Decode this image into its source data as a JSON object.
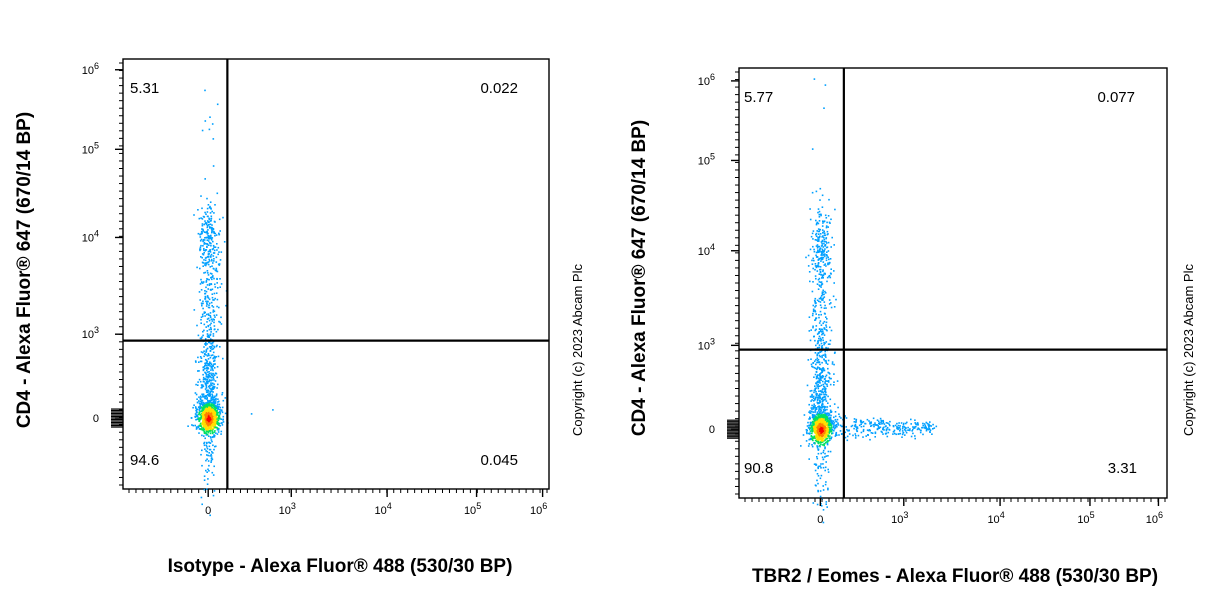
{
  "chart_data": [
    {
      "type": "scatter",
      "subtype": "flow-cytometry-density-dot-plot",
      "xlabel": "Isotype - Alexa Fluor® 488 (530/30 BP)",
      "ylabel": "CD4 - Alexa Fluor® 647 (670/14 BP)",
      "copyright": "Copyright (c) 2023 Abcam Plc",
      "x_scale": "biexponential",
      "y_scale": "biexponential",
      "x_ticks": [
        {
          "exp": "",
          "base": "0",
          "pos": 0.2
        },
        {
          "exp": "3",
          "base": "10",
          "pos": 0.395
        },
        {
          "exp": "4",
          "base": "10",
          "pos": 0.62
        },
        {
          "exp": "5",
          "base": "10",
          "pos": 0.83
        },
        {
          "exp": "6",
          "base": "10",
          "pos": 0.985
        }
      ],
      "y_ticks": [
        {
          "exp": "6",
          "base": "10",
          "pos": 0.975
        },
        {
          "exp": "5",
          "base": "10",
          "pos": 0.79
        },
        {
          "exp": "4",
          "base": "10",
          "pos": 0.585
        },
        {
          "exp": "3",
          "base": "10",
          "pos": 0.36
        },
        {
          "exp": "",
          "base": "0",
          "pos": 0.165
        }
      ],
      "gate": {
        "x": 0.245,
        "y": 0.345
      },
      "quadrants": {
        "upper_left": "5.31",
        "upper_right": "0.022",
        "lower_left": "94.6",
        "lower_right": "0.045"
      },
      "population_note": "CD4-negative events (94.6%) cluster near x=0, y=0; CD4-positive events (5.31%) extend upward near x=0; almost no events above the x threshold"
    },
    {
      "type": "scatter",
      "subtype": "flow-cytometry-density-dot-plot",
      "xlabel": "TBR2 / Eomes - Alexa Fluor® 488 (530/30 BP)",
      "ylabel": "CD4 - Alexa Fluor® 647 (670/14 BP)",
      "copyright": "Copyright (c) 2023 Abcam Plc",
      "x_scale": "biexponential",
      "y_scale": "biexponential",
      "x_ticks": [
        {
          "exp": "",
          "base": "0",
          "pos": 0.19
        },
        {
          "exp": "3",
          "base": "10",
          "pos": 0.385
        },
        {
          "exp": "4",
          "base": "10",
          "pos": 0.61
        },
        {
          "exp": "5",
          "base": "10",
          "pos": 0.82
        },
        {
          "exp": "6",
          "base": "10",
          "pos": 0.98
        }
      ],
      "y_ticks": [
        {
          "exp": "6",
          "base": "10",
          "pos": 0.97
        },
        {
          "exp": "5",
          "base": "10",
          "pos": 0.785
        },
        {
          "exp": "4",
          "base": "10",
          "pos": 0.575
        },
        {
          "exp": "3",
          "base": "10",
          "pos": 0.355
        },
        {
          "exp": "",
          "base": "0",
          "pos": 0.16
        }
      ],
      "gate": {
        "x": 0.245,
        "y": 0.345
      },
      "quadrants": {
        "upper_left": "5.77",
        "upper_right": "0.077",
        "lower_left": "90.8",
        "lower_right": "3.31"
      },
      "population_note": "Main CD4-negative cluster near x=0, y=0 (90.8%); a TBR2/Eomes-positive tail extends right (3.31%); CD4-positive events near x=0 (5.77%)"
    }
  ]
}
